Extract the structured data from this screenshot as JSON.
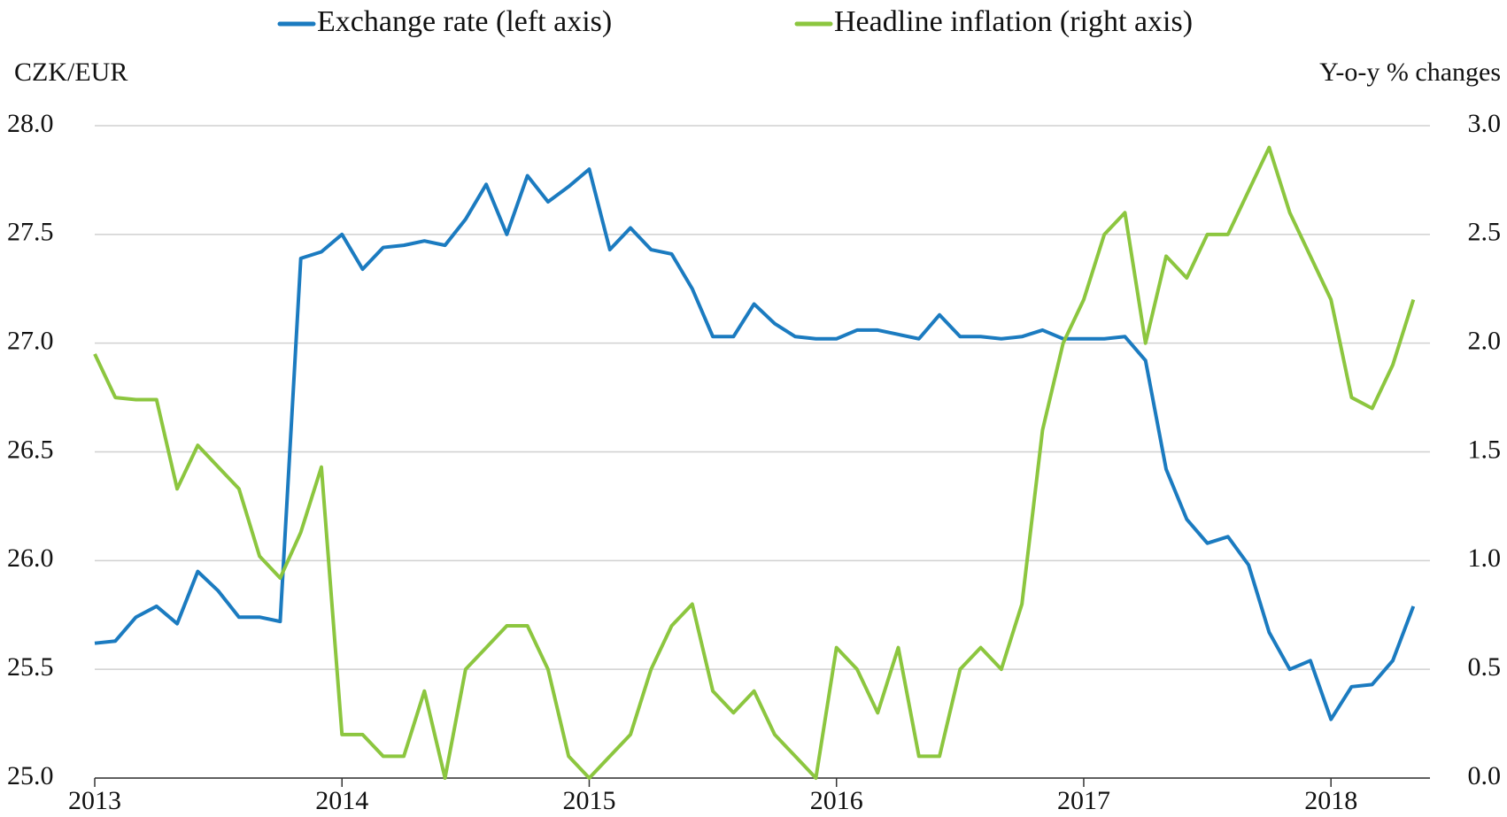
{
  "chart_data": {
    "type": "line",
    "y_label": "CZK/EUR",
    "y2_label": "Y-o-y % changes",
    "categories": [
      "2013",
      null,
      null,
      null,
      null,
      null,
      null,
      null,
      null,
      null,
      null,
      null,
      "2014",
      null,
      null,
      null,
      null,
      null,
      null,
      null,
      null,
      null,
      null,
      null,
      "2015",
      null,
      null,
      null,
      null,
      null,
      null,
      null,
      null,
      null,
      null,
      null,
      "2016",
      null,
      null,
      null,
      null,
      null,
      null,
      null,
      null,
      null,
      null,
      null,
      "2017",
      null,
      null,
      null,
      null,
      null,
      null,
      null,
      null,
      null,
      null,
      null,
      "2018",
      null,
      null,
      null,
      null
    ],
    "series": [
      {
        "name": "Exchange rate (left axis)",
        "color": "#1b7bc0",
        "axis": "y",
        "values": [
          25.62,
          25.63,
          25.74,
          25.79,
          25.71,
          25.95,
          25.86,
          25.74,
          25.74,
          25.72,
          27.39,
          27.42,
          27.5,
          27.34,
          27.44,
          27.45,
          27.47,
          27.45,
          27.57,
          27.73,
          27.5,
          27.77,
          27.65,
          27.72,
          27.8,
          27.43,
          27.53,
          27.43,
          27.41,
          27.25,
          27.03,
          27.03,
          27.18,
          27.09,
          27.03,
          27.02,
          27.02,
          27.06,
          27.06,
          27.04,
          27.02,
          27.13,
          27.03,
          27.03,
          27.02,
          27.03,
          27.06,
          27.02,
          27.02,
          27.02,
          27.03,
          26.92,
          26.42,
          26.19,
          26.08,
          26.11,
          25.98,
          25.67,
          25.5,
          25.54,
          25.27,
          25.42,
          25.43,
          25.54,
          25.79
        ]
      },
      {
        "name": "Headline inflation (right axis)",
        "color": "#8cc63f",
        "axis": "y2",
        "values": [
          1.95,
          1.75,
          1.74,
          1.74,
          1.33,
          1.53,
          1.43,
          1.33,
          1.02,
          0.92,
          1.13,
          1.43,
          0.2,
          0.2,
          0.1,
          0.1,
          0.4,
          0.0,
          0.5,
          0.6,
          0.7,
          0.7,
          0.5,
          0.1,
          0.0,
          0.1,
          0.2,
          0.5,
          0.7,
          0.8,
          0.4,
          0.3,
          0.4,
          0.2,
          0.1,
          0.0,
          0.6,
          0.5,
          0.3,
          0.6,
          0.1,
          0.1,
          0.5,
          0.6,
          0.5,
          0.8,
          1.6,
          2.0,
          2.2,
          2.5,
          2.6,
          2.0,
          2.4,
          2.3,
          2.5,
          2.5,
          2.7,
          2.9,
          2.6,
          2.4,
          2.2,
          1.75,
          1.7,
          1.9,
          2.2
        ]
      }
    ],
    "ylim": [
      25.0,
      28.0
    ],
    "yticks": [
      {
        "value": 25,
        "label": "25.0"
      },
      25.5,
      {
        "value": 26,
        "label": "26.0"
      },
      26.5,
      {
        "value": 27,
        "label": "27.0"
      },
      27.5,
      {
        "value": 28,
        "label": "28.0"
      }
    ],
    "y2lim": [
      0.0,
      3.0
    ],
    "y2ticks": [
      {
        "value": 0,
        "label": "0.0"
      },
      0.5,
      {
        "value": 1,
        "label": "1.0"
      },
      1.5,
      {
        "value": 2,
        "label": "2.0"
      },
      2.5,
      {
        "value": 3,
        "label": "3.0"
      }
    ],
    "grid": true,
    "legend": "top"
  }
}
